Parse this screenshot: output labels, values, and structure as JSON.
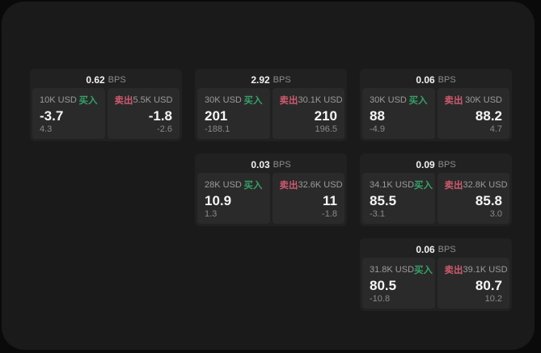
{
  "labels": {
    "bps_unit": "BPS",
    "buy": "买入",
    "sell": "卖出"
  },
  "colors": {
    "page_bg": "#0a0a0a",
    "window_bg": "#1a1a1a",
    "card_bg": "#212121",
    "panel_bg": "#2a2a2a",
    "buy_green": "#35a168",
    "sell_red": "#cd5a6e",
    "price_text": "#f5f5f5",
    "muted_text": "#8a8a8a"
  },
  "cards": [
    {
      "bps_value": "0.62",
      "buy": {
        "amount": "10K USD",
        "price": "-3.7",
        "delta": "4.3"
      },
      "sell": {
        "amount": "5.5K USD",
        "price": "-1.8",
        "delta": "-2.6"
      }
    },
    {
      "bps_value": "2.92",
      "buy": {
        "amount": "30K USD",
        "price": "201",
        "delta": "-188.1"
      },
      "sell": {
        "amount": "30.1K USD",
        "price": "210",
        "delta": "196.5"
      }
    },
    {
      "bps_value": "0.06",
      "buy": {
        "amount": "30K USD",
        "price": "88",
        "delta": "-4.9"
      },
      "sell": {
        "amount": "30K USD",
        "price": "88.2",
        "delta": "4.7"
      }
    },
    {
      "bps_value": "0.03",
      "buy": {
        "amount": "28K USD",
        "price": "10.9",
        "delta": "1.3"
      },
      "sell": {
        "amount": "32.6K USD",
        "price": "11",
        "delta": "-1.8"
      }
    },
    {
      "bps_value": "0.09",
      "buy": {
        "amount": "34.1K USD",
        "price": "85.5",
        "delta": "-3.1"
      },
      "sell": {
        "amount": "32.8K USD",
        "price": "85.8",
        "delta": "3.0"
      }
    },
    {
      "bps_value": "0.06",
      "buy": {
        "amount": "31.8K USD",
        "price": "80.5",
        "delta": "-10.8"
      },
      "sell": {
        "amount": "39.1K USD",
        "price": "80.7",
        "delta": "10.2"
      }
    }
  ]
}
